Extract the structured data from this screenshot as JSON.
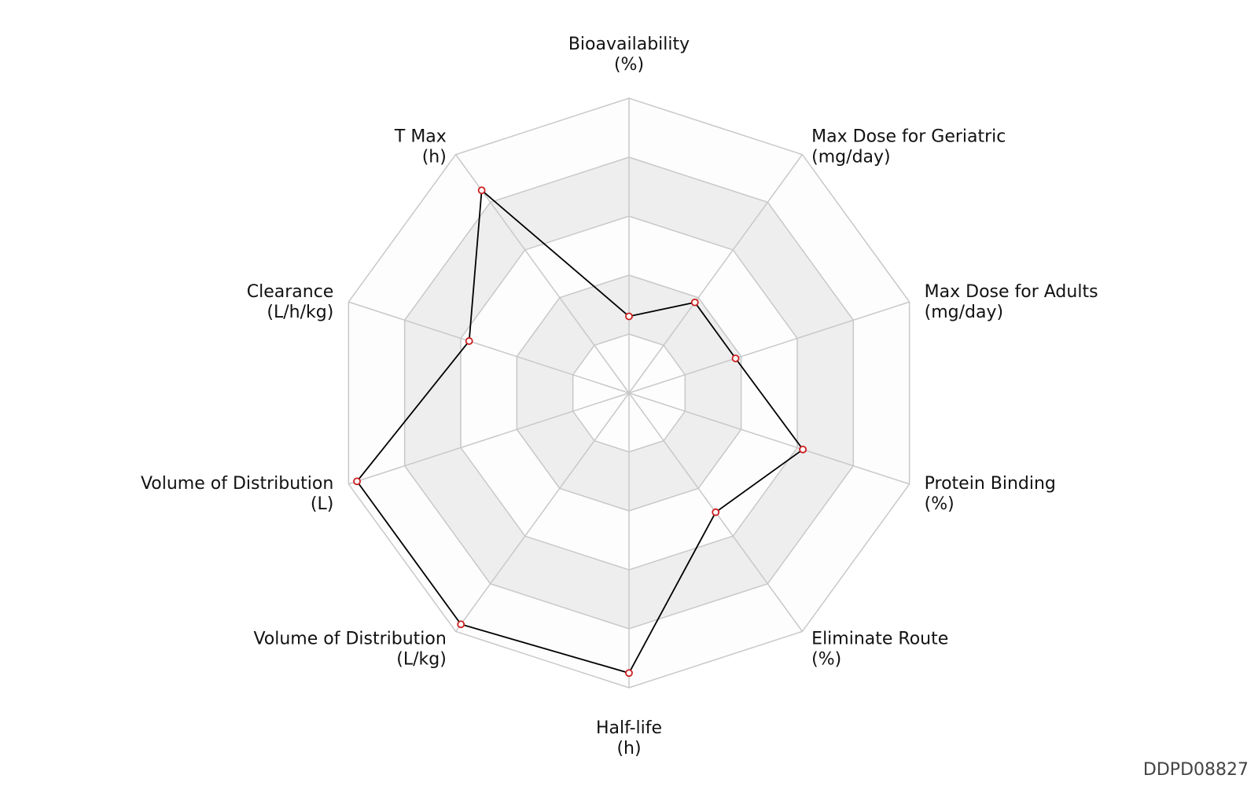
{
  "chart_data": {
    "type": "radar",
    "axes": [
      {
        "name": "Bioavailability",
        "unit": "(%)"
      },
      {
        "name": "Max Dose for Geriatric",
        "unit": "(mg/day)"
      },
      {
        "name": "Max Dose for Adults",
        "unit": "(mg/day)"
      },
      {
        "name": "Protein Binding",
        "unit": "(%)"
      },
      {
        "name": "Eliminate Route",
        "unit": "(%)"
      },
      {
        "name": "Half-life",
        "unit": "(h)"
      },
      {
        "name": "Volume of Distribution",
        "unit": "(L/kg)"
      },
      {
        "name": "Volume of Distribution",
        "unit": "(L)"
      },
      {
        "name": "Clearance",
        "unit": "(L/h/kg)"
      },
      {
        "name": "T Max",
        "unit": "(h)"
      }
    ],
    "range": [
      0,
      1
    ],
    "rings": 5,
    "alternating_bands": true,
    "series": [
      {
        "values": [
          0.26,
          0.38,
          0.38,
          0.62,
          0.5,
          0.95,
          0.97,
          0.97,
          0.57,
          0.85
        ]
      }
    ],
    "colors": {
      "line": "#000000",
      "marker": "#cc1f1f",
      "band": "#eeeeee",
      "grid": "#c8c8c8"
    }
  },
  "watermark": "DDPD08827"
}
